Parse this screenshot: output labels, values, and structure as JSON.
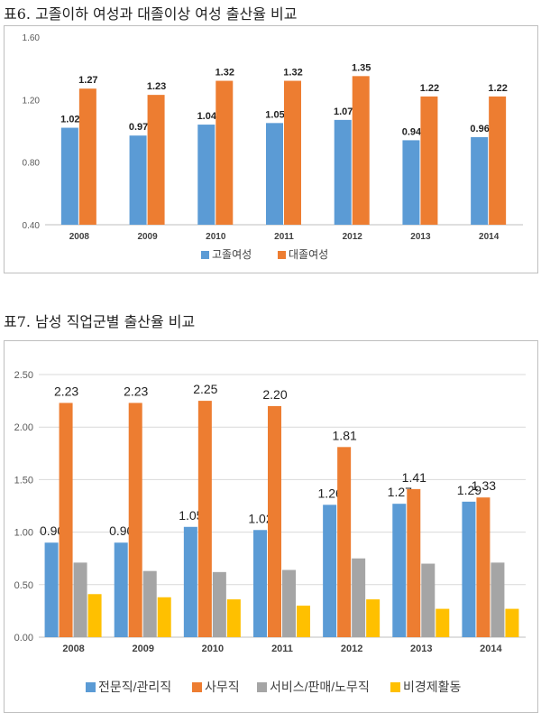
{
  "charts": [
    {
      "caption": "표6. 고졸이하 여성과 대졸이상 여성 출산율 비교",
      "chart_data": {
        "type": "bar",
        "categories": [
          "2008",
          "2009",
          "2010",
          "2011",
          "2012",
          "2013",
          "2014"
        ],
        "series": [
          {
            "name": "고졸여성",
            "values": [
              1.02,
              0.97,
              1.04,
              1.05,
              1.07,
              0.94,
              0.96
            ],
            "color": "#5b9bd5"
          },
          {
            "name": "대졸여성",
            "values": [
              1.27,
              1.23,
              1.32,
              1.32,
              1.35,
              1.22,
              1.22
            ],
            "color": "#ed7d31"
          }
        ],
        "ylim": [
          0.4,
          1.6
        ],
        "yticks": [
          "1.60",
          "1.20",
          "0.80",
          "0.40"
        ],
        "data_labels": [
          "all"
        ],
        "label_format": 2,
        "legend": "bottom",
        "grid": false
      }
    },
    {
      "caption": "표7. 남성 직업군별 출산율 비교",
      "chart_data": {
        "type": "bar",
        "categories": [
          "2008",
          "2009",
          "2010",
          "2011",
          "2012",
          "2013",
          "2014"
        ],
        "series": [
          {
            "name": "전문직/관리직",
            "values": [
              0.9,
              0.9,
              1.05,
              1.02,
              1.26,
              1.27,
              1.29
            ],
            "color": "#5b9bd5"
          },
          {
            "name": "사무직",
            "values": [
              2.23,
              2.23,
              2.25,
              2.2,
              1.81,
              1.41,
              1.33
            ],
            "color": "#ed7d31"
          },
          {
            "name": "서비스/판매/노무직",
            "values": [
              0.71,
              0.63,
              0.62,
              0.64,
              0.75,
              0.7,
              0.71
            ],
            "color": "#a5a5a5"
          },
          {
            "name": "비경제활동",
            "values": [
              0.41,
              0.38,
              0.36,
              0.3,
              0.36,
              0.27,
              0.27
            ],
            "color": "#ffc000"
          }
        ],
        "ylim": [
          0,
          2.5
        ],
        "yticks": [
          "2.50",
          "2.00",
          "1.50",
          "1.00",
          "0.50",
          "0.00"
        ],
        "data_labels": [
          "전문직/관리직",
          "사무직"
        ],
        "label_format": 2,
        "legend": "bottom",
        "grid": true
      }
    }
  ]
}
